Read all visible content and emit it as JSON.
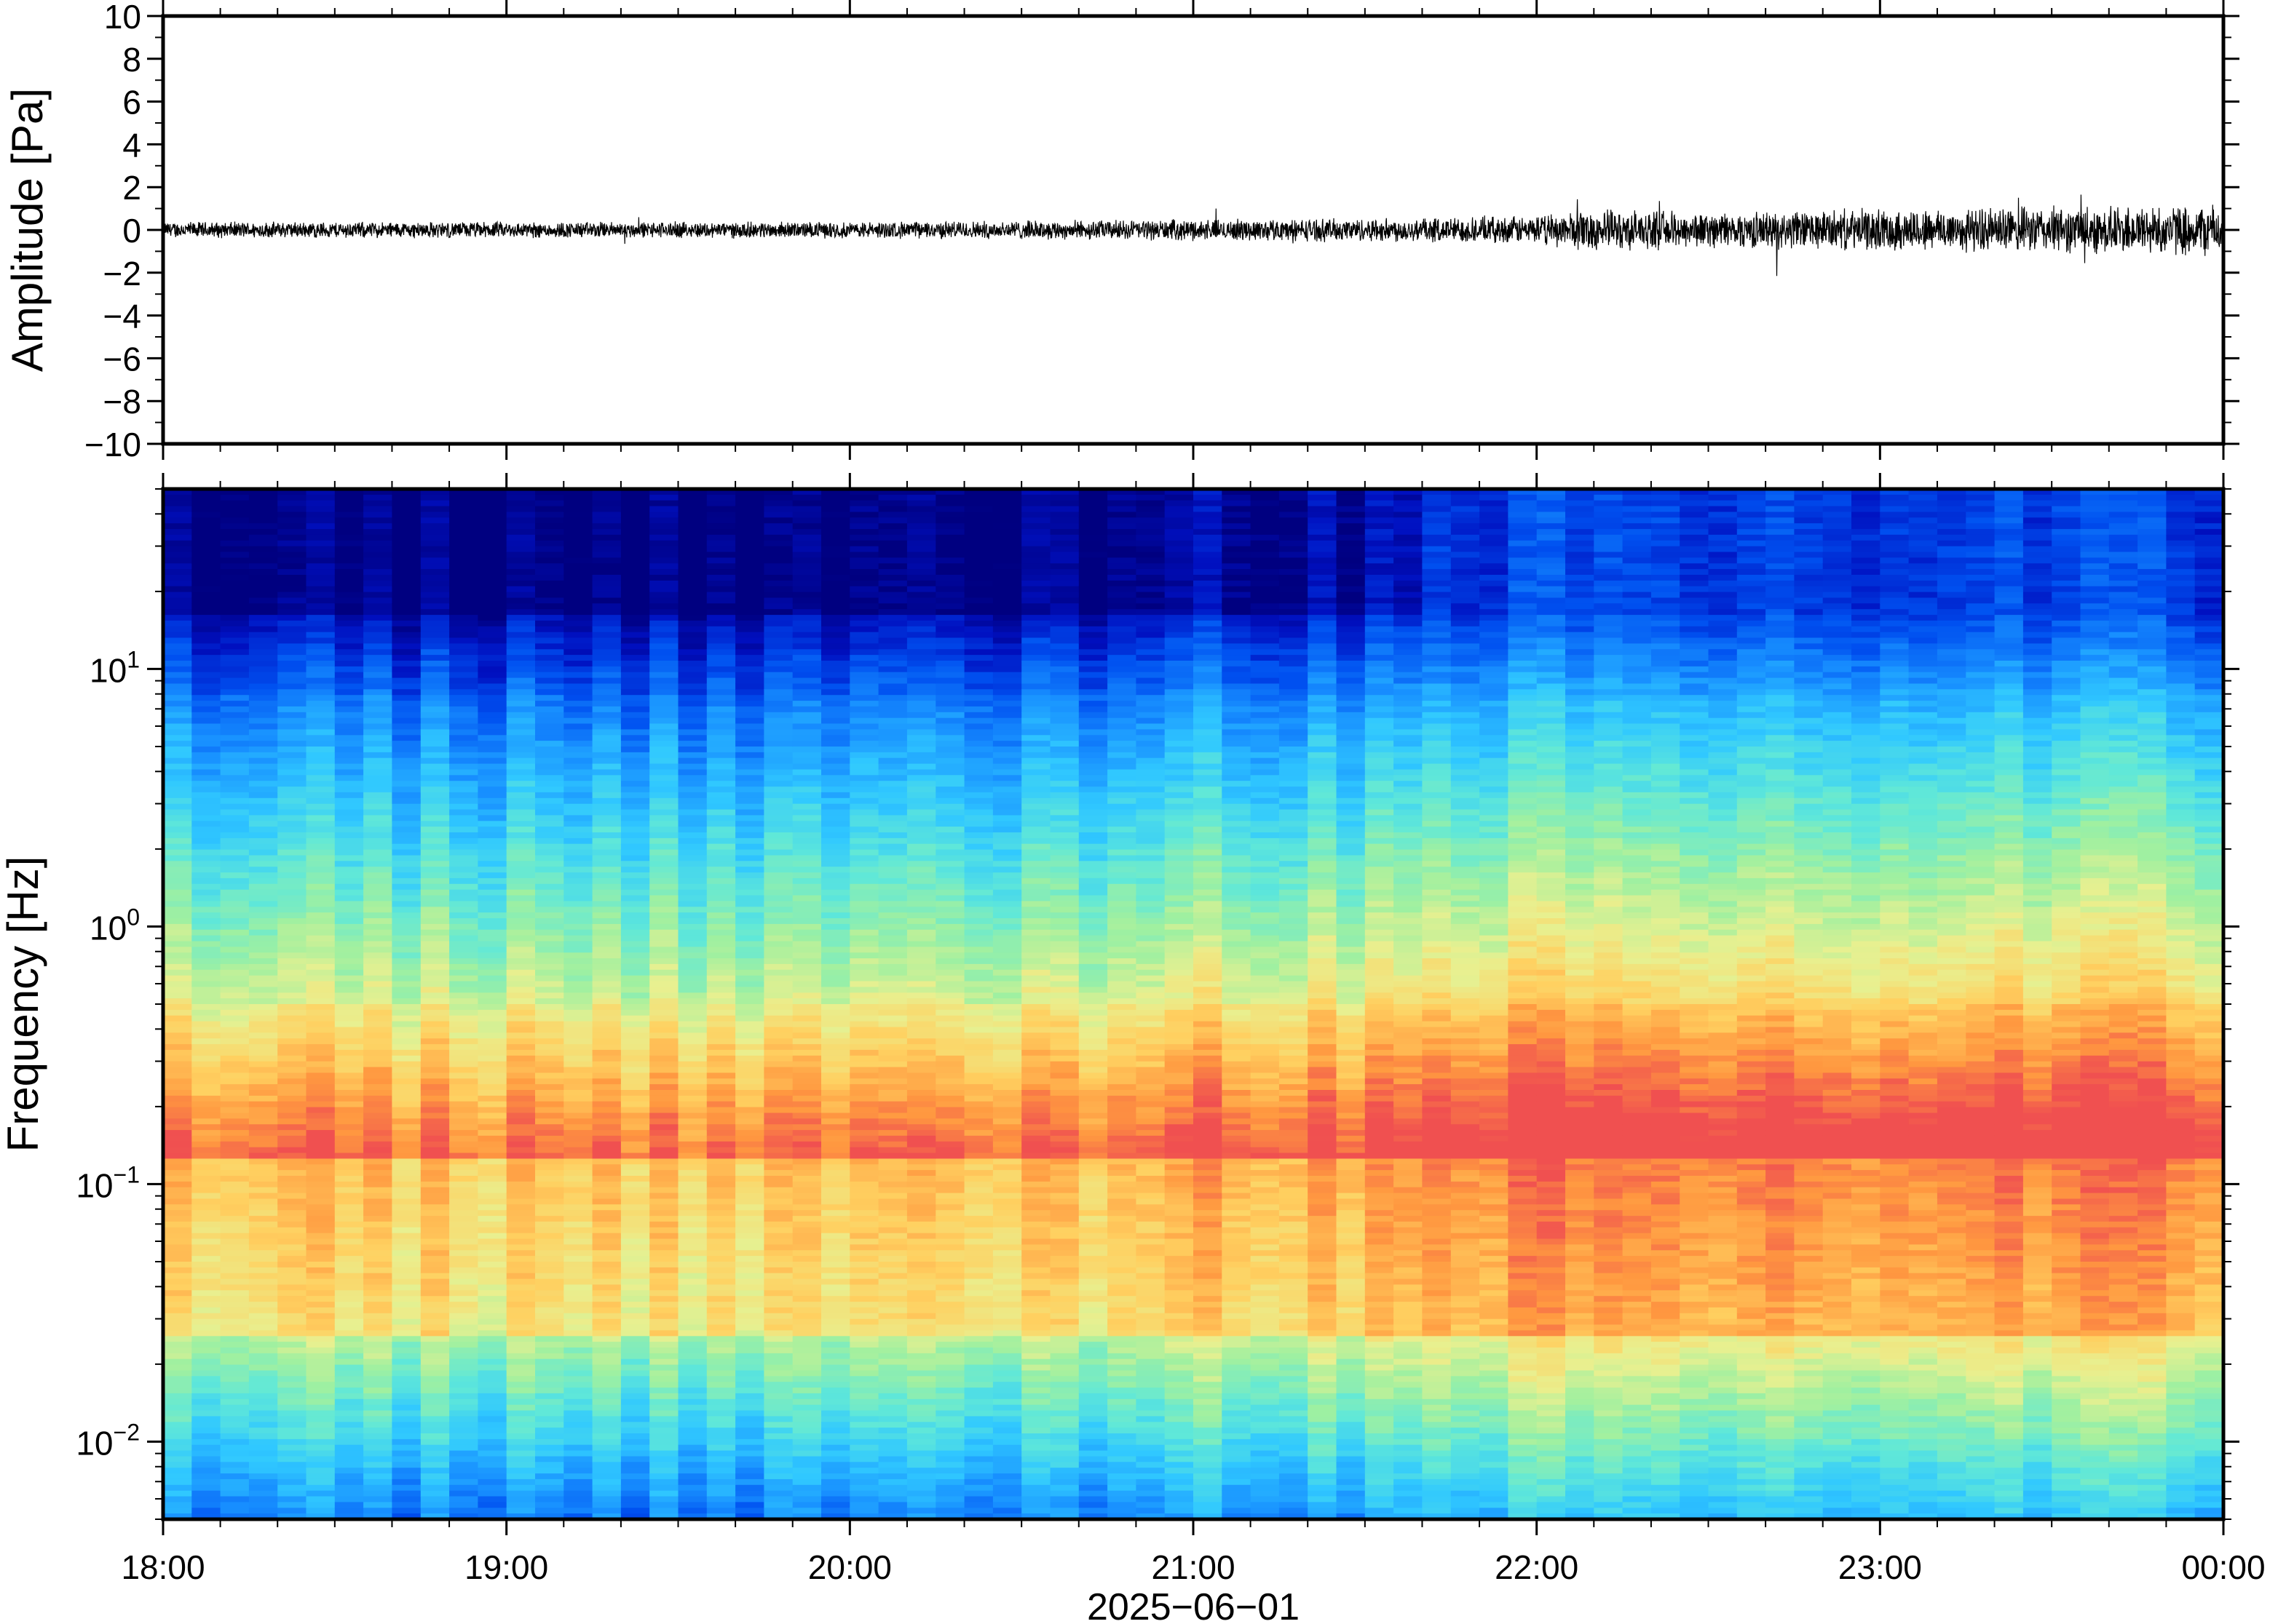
{
  "chart_data": [
    {
      "type": "line",
      "ylabel": "Amplitude [Pa]",
      "ylim": [
        -10,
        10
      ],
      "yticks": [
        "10",
        "8",
        "6",
        "4",
        "2",
        "0",
        "−2",
        "−4",
        "−6",
        "−8",
        "−10"
      ],
      "ytick_values": [
        10,
        8,
        6,
        4,
        2,
        0,
        -2,
        -4,
        -6,
        -8,
        -10
      ],
      "xlim_hours": [
        18,
        24
      ],
      "envelope": {
        "x": [
          18.0,
          18.5,
          19.0,
          19.5,
          20.0,
          20.5,
          21.0,
          21.5,
          22.0,
          22.15,
          22.5,
          23.0,
          23.5,
          24.0
        ],
        "y": [
          0.35,
          0.35,
          0.35,
          0.35,
          0.35,
          0.4,
          0.45,
          0.5,
          0.6,
          0.9,
          0.75,
          0.9,
          1.0,
          1.1
        ]
      },
      "grid": false,
      "line_color": "#000000"
    },
    {
      "type": "heatmap",
      "ylabel": "Frequency [Hz]",
      "yscale": "log",
      "ylim": [
        0.005,
        50
      ],
      "yticks": [
        {
          "value": 10,
          "base": "10",
          "exp": "1"
        },
        {
          "value": 1,
          "base": "10",
          "exp": "0"
        },
        {
          "value": 0.1,
          "base": "10",
          "exp": "−1"
        },
        {
          "value": 0.01,
          "base": "10",
          "exp": "−2"
        }
      ],
      "xlim_hours": [
        18,
        24
      ],
      "xticks": [
        "18:00",
        "19:00",
        "20:00",
        "21:00",
        "22:00",
        "23:00",
        "00:00"
      ],
      "xlabel": "2025−06−01",
      "colormap": [
        "#ffffff"
      ],
      "microseism_band_hz": 0.15,
      "grid": false
    }
  ],
  "colors": {
    "cmap": [
      "#000080",
      "#0010c0",
      "#0050f0",
      "#1890ff",
      "#30c8ff",
      "#60e8d8",
      "#a0f0a0",
      "#e8f090",
      "#ffd060",
      "#ff9840",
      "#f05050"
    ]
  }
}
